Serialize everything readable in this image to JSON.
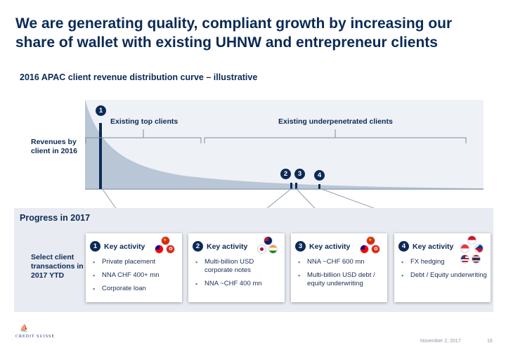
{
  "title": "We are generating quality, compliant growth by increasing our share of wallet with existing UHNW and entrepreneur clients",
  "subtitle": "2016 APAC client revenue distribution curve – illustrative",
  "chart": {
    "top_clients_label": "Existing top clients",
    "underpenetrated_label": "Existing underpenetrated clients",
    "y_label": "Revenues by client in 2016",
    "markers": [
      "1",
      "2",
      "3",
      "4"
    ]
  },
  "progress": {
    "title": "Progress in 2017",
    "row_label": "Select client transactions in 2017 YTD",
    "cards": [
      {
        "num": "1",
        "header": "Key activity",
        "bullets": [
          "Private placement",
          "NNA CHF 400+ mn",
          "Corporate loan"
        ],
        "flags": [
          "china-flag",
          "taiwan-flag",
          "hong-kong-flag"
        ]
      },
      {
        "num": "2",
        "header": "Key activity",
        "bullets": [
          "Multi-billion USD corporate notes",
          "NNA ~CHF 400 mn"
        ],
        "flags": [
          "australia-flag",
          "japan-flag",
          "india-flag"
        ]
      },
      {
        "num": "3",
        "header": "Key activity",
        "bullets": [
          "NNA ~CHF 600 mn",
          "Multi-billion USD debt / equity underwriting"
        ],
        "flags": [
          "china-flag",
          "taiwan-flag",
          "hong-kong-flag"
        ]
      },
      {
        "num": "4",
        "header": "Key activity",
        "bullets": [
          "FX hedging",
          "Debt / Equity underwriting"
        ],
        "flags": [
          "indonesia-flag",
          "philippines-flag",
          "usa-flag",
          "thailand-flag",
          "singapore-flag"
        ]
      }
    ]
  },
  "footer": {
    "logo": "CREDIT SUISSE",
    "date": "November 2, 2017",
    "page": "16"
  },
  "colors": {
    "navy": "#0b2a56",
    "curve": "#b9c6d6",
    "panel": "#e8ebf1"
  }
}
